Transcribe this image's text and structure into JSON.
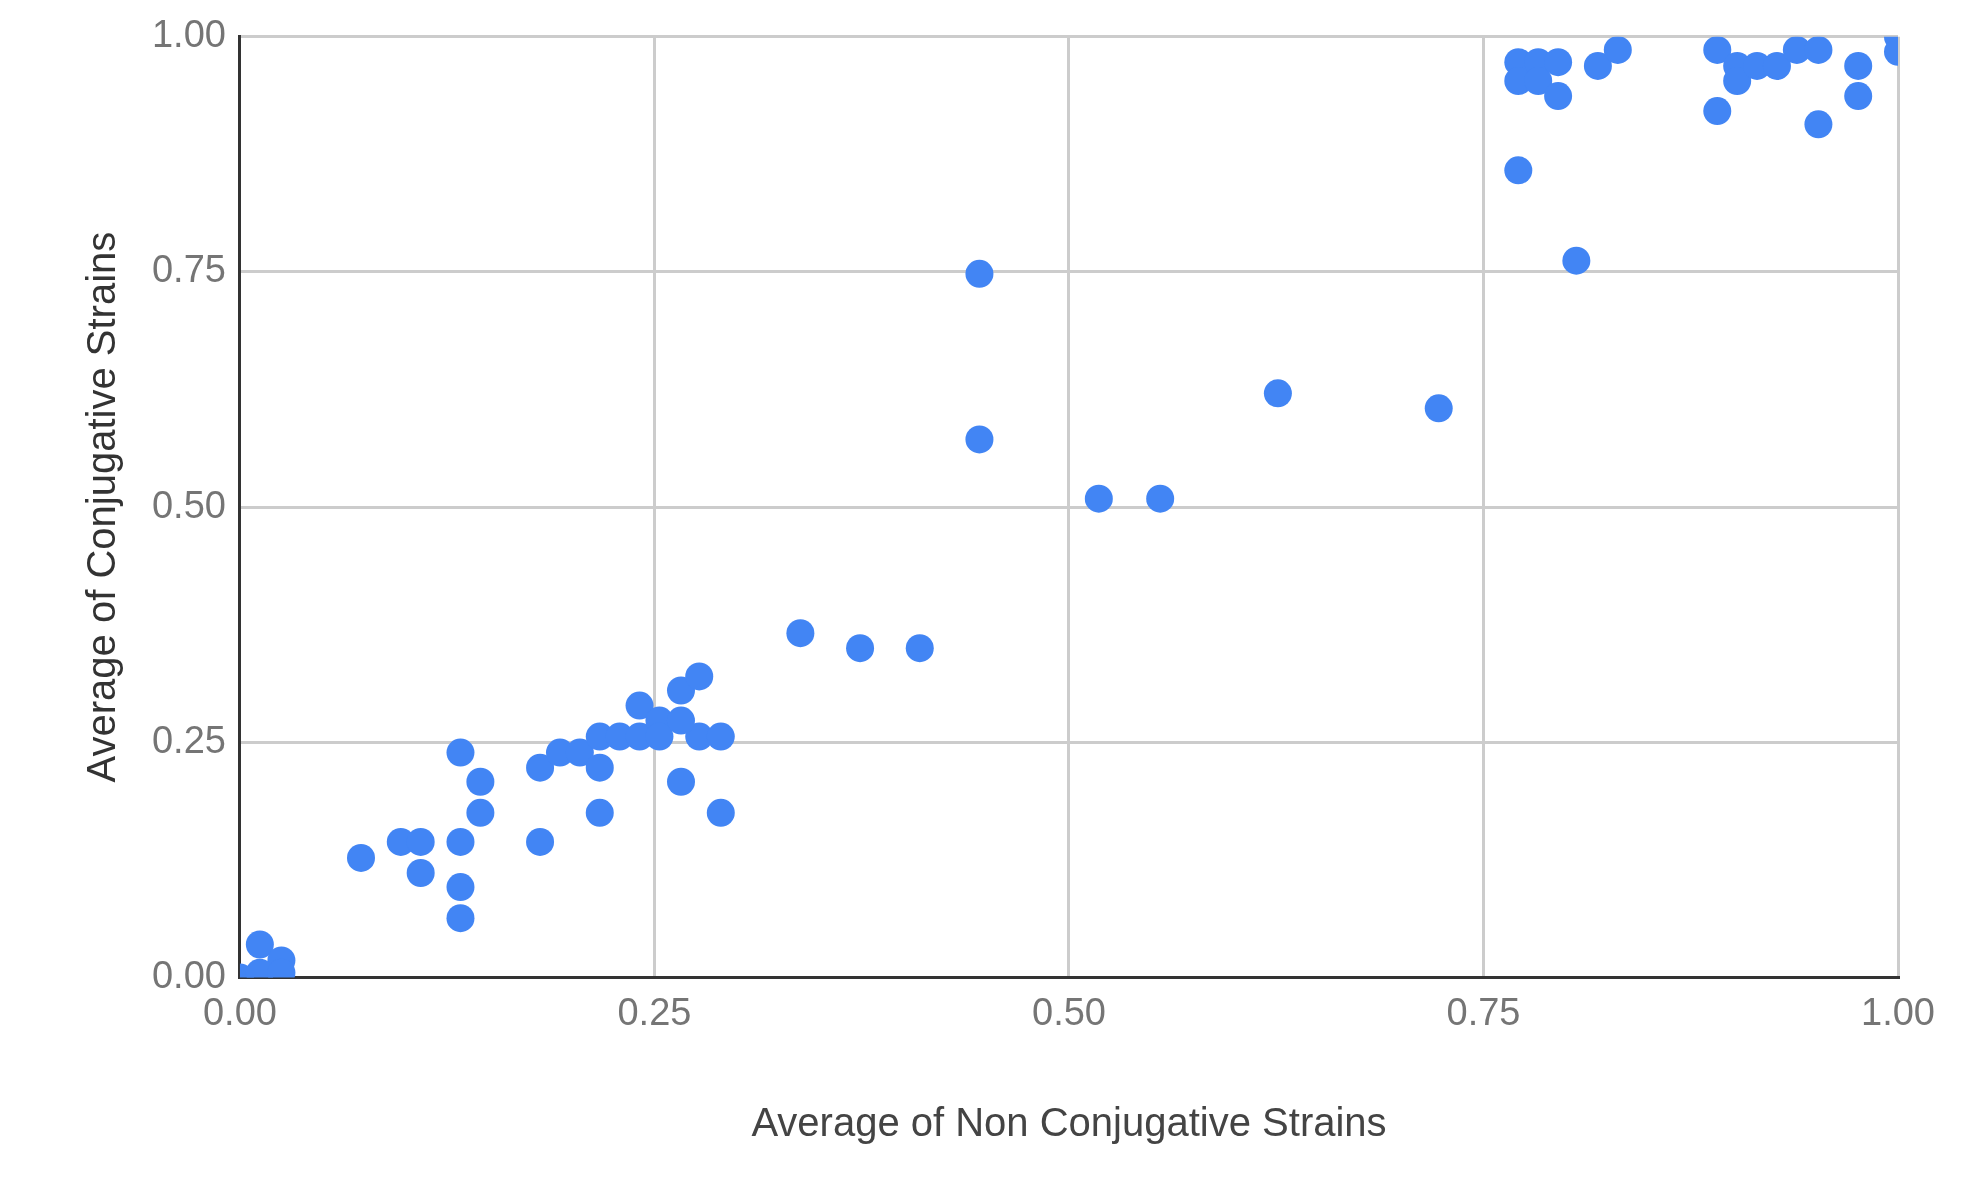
{
  "chart_data": {
    "type": "scatter",
    "xlabel": "Average of Non Conjugative Strains",
    "ylabel": "Average of Conjugative Strains",
    "xlim": [
      0,
      1
    ],
    "ylim": [
      0,
      1
    ],
    "xticks": [
      {
        "value": 0,
        "label": "0.00"
      },
      {
        "value": 0.25,
        "label": "0.25"
      },
      {
        "value": 0.5,
        "label": "0.50"
      },
      {
        "value": 0.75,
        "label": "0.75"
      },
      {
        "value": 1,
        "label": "1.00"
      }
    ],
    "yticks": [
      {
        "value": 0,
        "label": "0.00"
      },
      {
        "value": 0.25,
        "label": "0.25"
      },
      {
        "value": 0.5,
        "label": "0.50"
      },
      {
        "value": 0.75,
        "label": "0.75"
      },
      {
        "value": 1,
        "label": "1.00"
      }
    ],
    "grid": true,
    "legend": false,
    "marker": "circle",
    "series": [
      {
        "color": "#4285f4",
        "x": [
          0,
          0.012,
          0.025,
          0.012,
          0.025,
          0.073,
          0.097,
          0.109,
          0.109,
          0.133,
          0.133,
          0.133,
          0.133,
          0.145,
          0.145,
          0.181,
          0.181,
          0.193,
          0.205,
          0.217,
          0.217,
          0.217,
          0.229,
          0.241,
          0.241,
          0.253,
          0.253,
          0.266,
          0.266,
          0.277,
          0.277,
          0.29,
          0.29,
          0.266,
          0.338,
          0.374,
          0.41,
          0.446,
          0.446,
          0.518,
          0.555,
          0.626,
          0.723,
          0.771,
          0.771,
          0.783,
          0.783,
          0.795,
          0.795,
          0.771,
          0.819,
          0.831,
          0.806,
          0.891,
          0.891,
          0.903,
          0.903,
          0.915,
          0.927,
          0.939,
          0.952,
          0.952,
          0.976,
          0.976,
          1,
          1
        ],
        "values": [
          0,
          0.035,
          0.018,
          0.005,
          0.005,
          0.127,
          0.144,
          0.144,
          0.111,
          0.239,
          0.144,
          0.096,
          0.063,
          0.208,
          0.175,
          0.223,
          0.144,
          0.239,
          0.239,
          0.256,
          0.223,
          0.175,
          0.256,
          0.289,
          0.256,
          0.273,
          0.256,
          0.305,
          0.208,
          0.32,
          0.256,
          0.256,
          0.175,
          0.273,
          0.366,
          0.35,
          0.35,
          0.748,
          0.572,
          0.509,
          0.509,
          0.621,
          0.605,
          0.973,
          0.953,
          0.973,
          0.953,
          0.973,
          0.937,
          0.858,
          0.969,
          0.986,
          0.762,
          0.986,
          0.921,
          0.969,
          0.953,
          0.969,
          0.969,
          0.986,
          0.986,
          0.907,
          0.969,
          0.937,
          1,
          0.984
        ]
      }
    ]
  }
}
